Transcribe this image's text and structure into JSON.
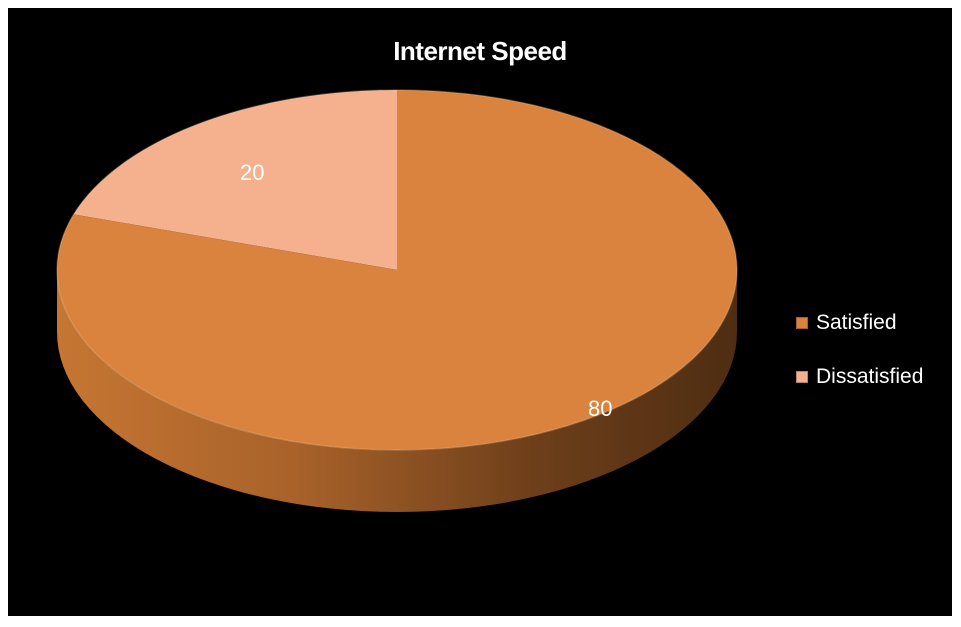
{
  "chart_data": {
    "type": "pie",
    "title": "Internet Speed",
    "categories": [
      "Satisfied",
      "Dissatisfied"
    ],
    "values": [
      80,
      20
    ],
    "colors": [
      "#d9833f",
      "#f5b08d"
    ],
    "legend_position": "right",
    "style": "3d"
  }
}
